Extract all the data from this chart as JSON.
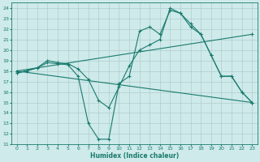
{
  "xlabel": "Humidex (Indice chaleur)",
  "bg_color": "#ceeaea",
  "grid_color": "#b8d8d8",
  "line_color": "#1a7a6e",
  "xlim": [
    -0.5,
    23.5
  ],
  "ylim": [
    11,
    24.5
  ],
  "yticks": [
    11,
    12,
    13,
    14,
    15,
    16,
    17,
    18,
    19,
    20,
    21,
    22,
    23,
    24
  ],
  "xticks": [
    0,
    1,
    2,
    3,
    4,
    5,
    6,
    7,
    8,
    9,
    10,
    11,
    12,
    13,
    14,
    15,
    16,
    17,
    18,
    19,
    20,
    21,
    22,
    23
  ],
  "lines": [
    {
      "x": [
        0,
        1,
        2,
        3,
        4,
        5,
        6,
        7,
        8,
        9,
        10,
        11,
        12,
        13,
        14,
        15,
        16,
        17,
        18,
        19,
        20,
        21,
        22,
        23
      ],
      "y": [
        17.8,
        18.0,
        18.3,
        18.8,
        18.7,
        18.6,
        17.5,
        13.0,
        11.5,
        11.5,
        16.8,
        17.5,
        21.8,
        22.2,
        21.5,
        23.8,
        23.5,
        22.5,
        21.5,
        19.5,
        17.5,
        17.5,
        16.0,
        15.0
      ]
    },
    {
      "x": [
        0,
        2,
        3,
        4,
        5,
        6,
        7,
        8,
        9,
        10,
        11,
        12,
        13,
        14,
        15,
        16,
        17,
        18,
        19,
        20,
        21,
        22,
        23
      ],
      "y": [
        17.8,
        18.3,
        19.0,
        18.8,
        18.7,
        18.2,
        17.2,
        15.2,
        14.5,
        16.5,
        18.5,
        20.0,
        20.5,
        21.0,
        24.0,
        23.5,
        22.2,
        21.5,
        19.5,
        17.5,
        17.5,
        16.0,
        15.0
      ]
    },
    {
      "x": [
        0,
        23
      ],
      "y": [
        18.0,
        21.5
      ]
    },
    {
      "x": [
        0,
        23
      ],
      "y": [
        18.0,
        15.0
      ]
    }
  ]
}
